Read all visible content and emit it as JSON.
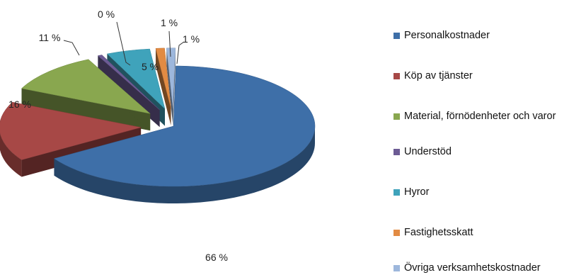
{
  "chart_data": {
    "type": "pie",
    "style": "3d-exploded",
    "legend_position": "right",
    "categories": [
      "Personalkostnader",
      "Köp av tjänster",
      "Material, förnödenheter och varor",
      "Understöd",
      "Hyror",
      "Fastighetsskatt",
      "Övriga verksamhetskostnader"
    ],
    "values": [
      66,
      16,
      11,
      0.5,
      5,
      1,
      1
    ],
    "data_labels": [
      "66 %",
      "16 %",
      "11 %",
      "0 %",
      "5 %",
      "1 %",
      "1 %"
    ],
    "colors": [
      "#3e6fa8",
      "#a74846",
      "#89a74f",
      "#6c5b94",
      "#3fa3bb",
      "#e28b43",
      "#9db7dc"
    ]
  }
}
